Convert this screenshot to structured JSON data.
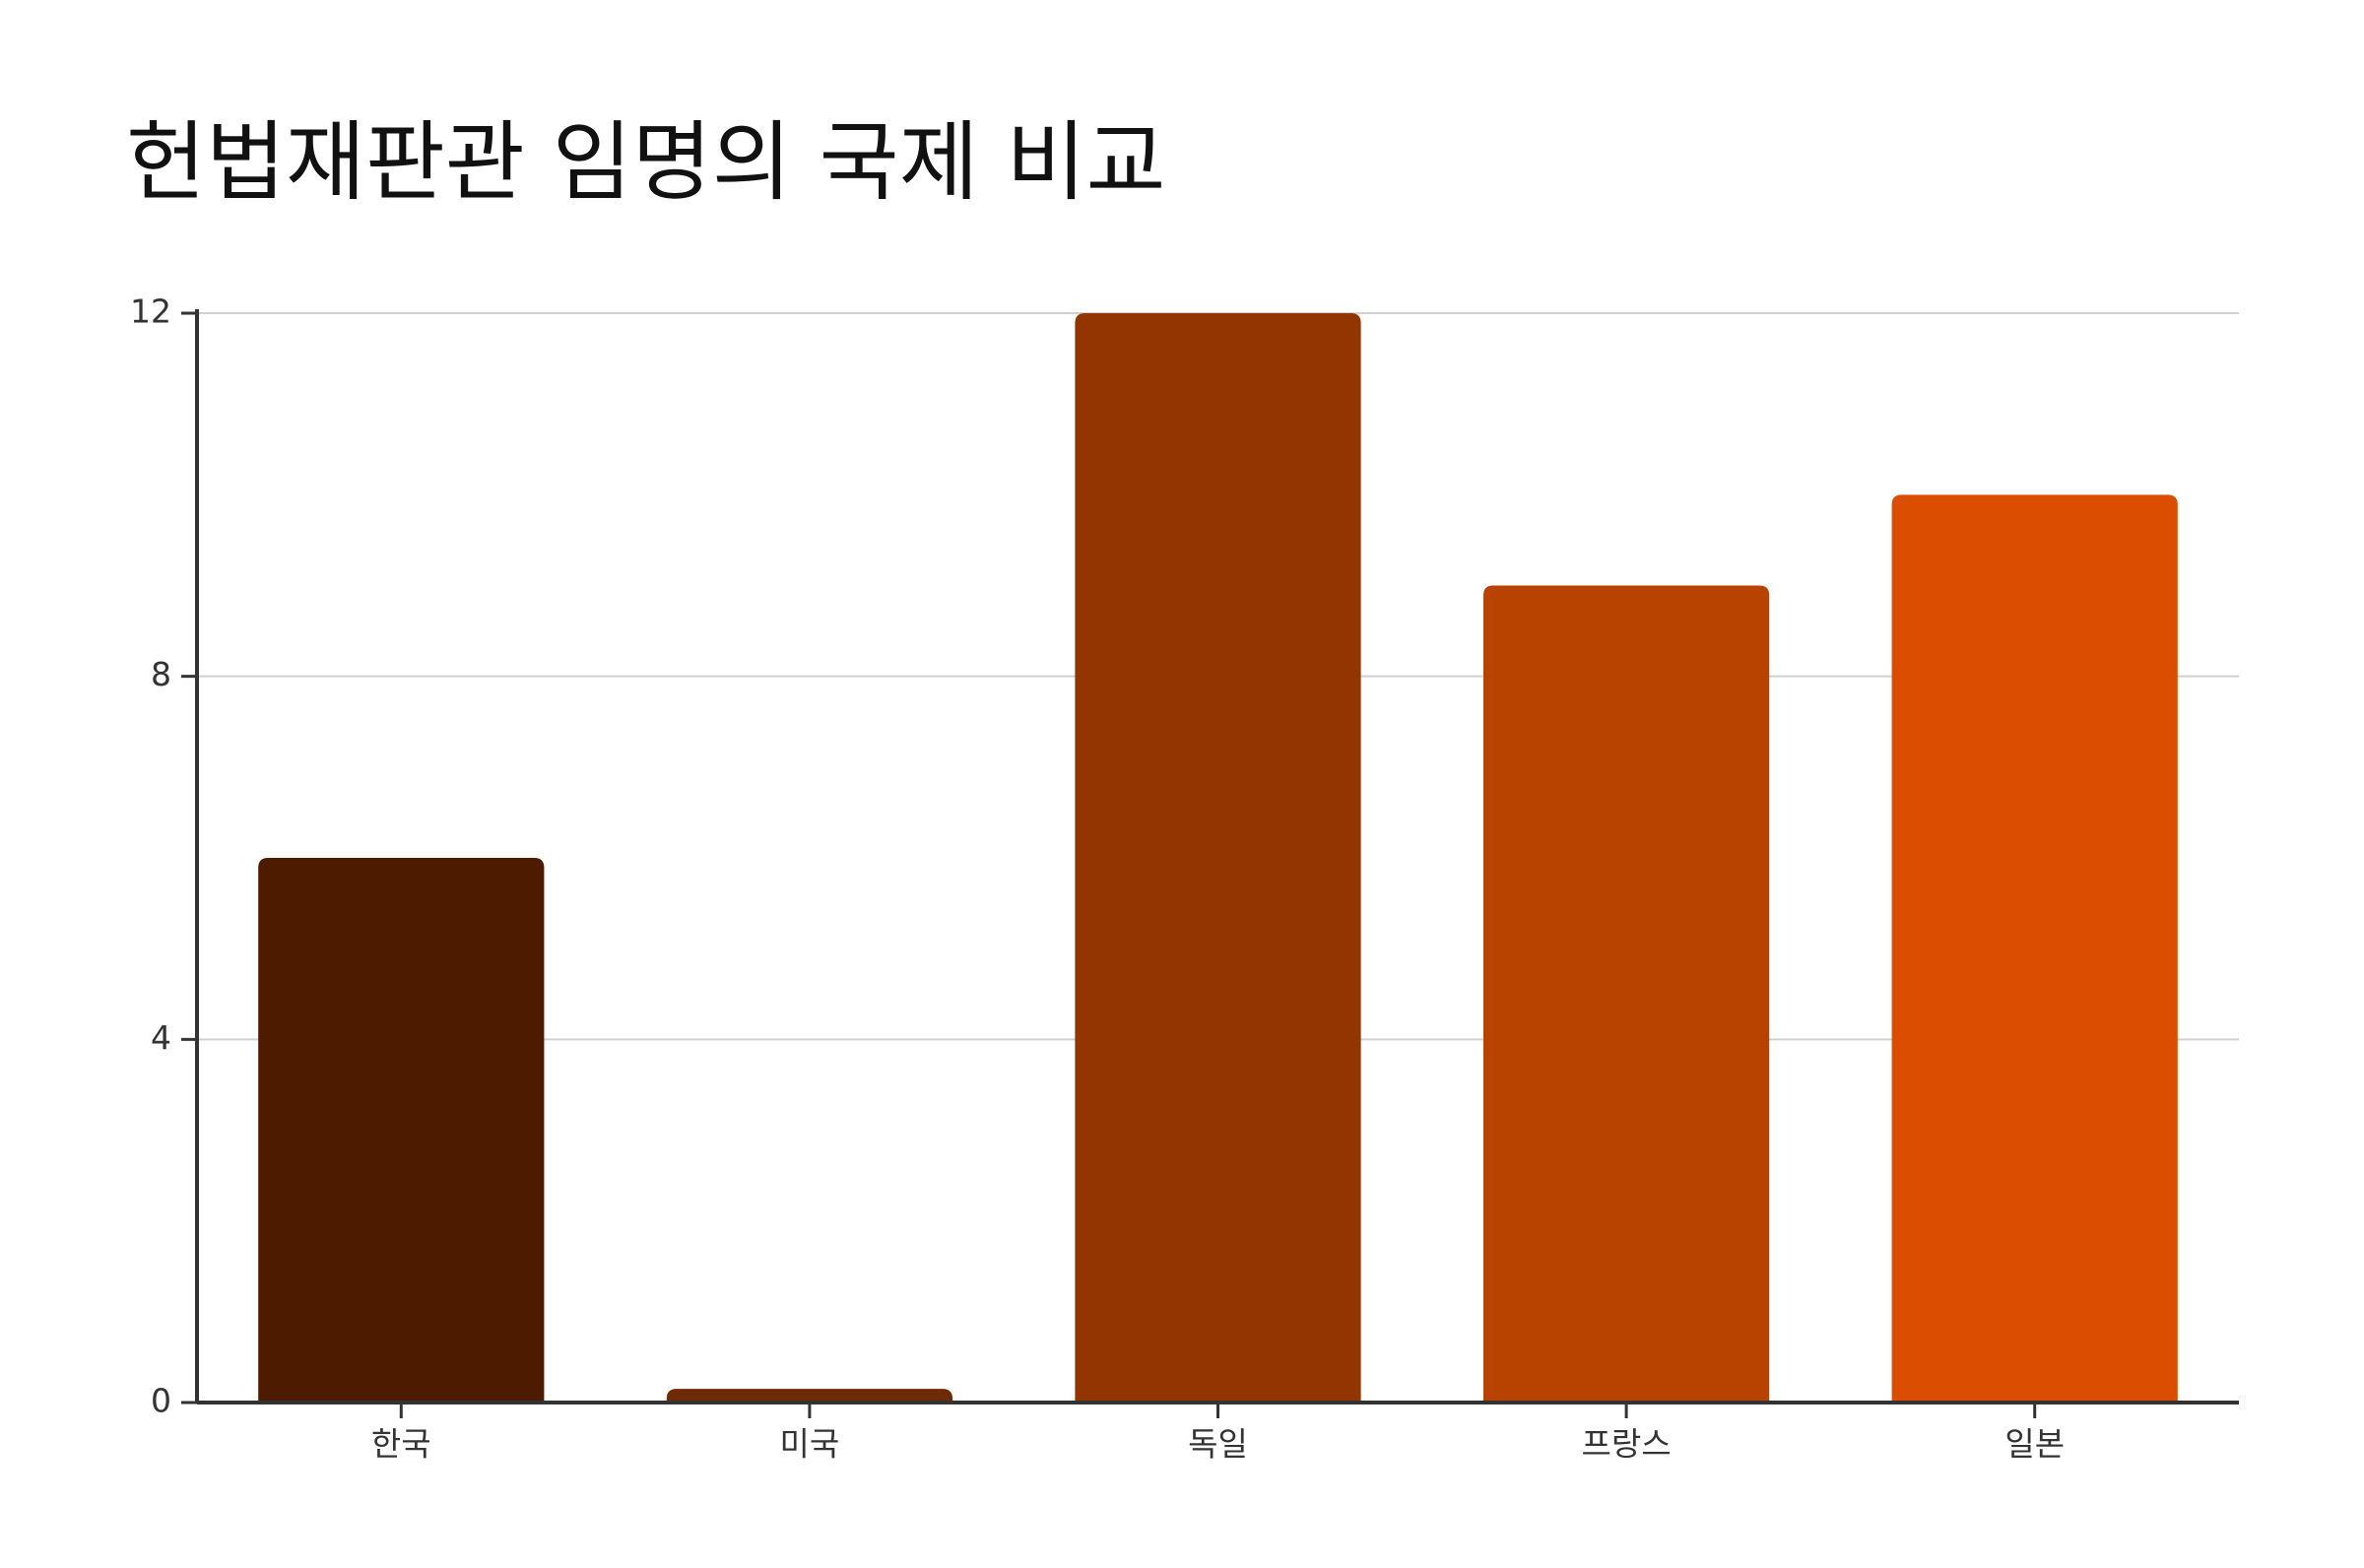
{
  "chart_data": {
    "type": "bar",
    "title": "헌법재판관 임명의 국제 비교",
    "categories": [
      "한국",
      "미국",
      "독일",
      "프랑스",
      "일본"
    ],
    "values": [
      6,
      0.15,
      12,
      9,
      10
    ],
    "colors": [
      "#4d1c00",
      "#6e2a05",
      "#933500",
      "#b84300",
      "#db4d00"
    ],
    "ylim": [
      0,
      12
    ],
    "yticks": [
      0,
      4,
      8,
      12
    ],
    "grid": true
  }
}
